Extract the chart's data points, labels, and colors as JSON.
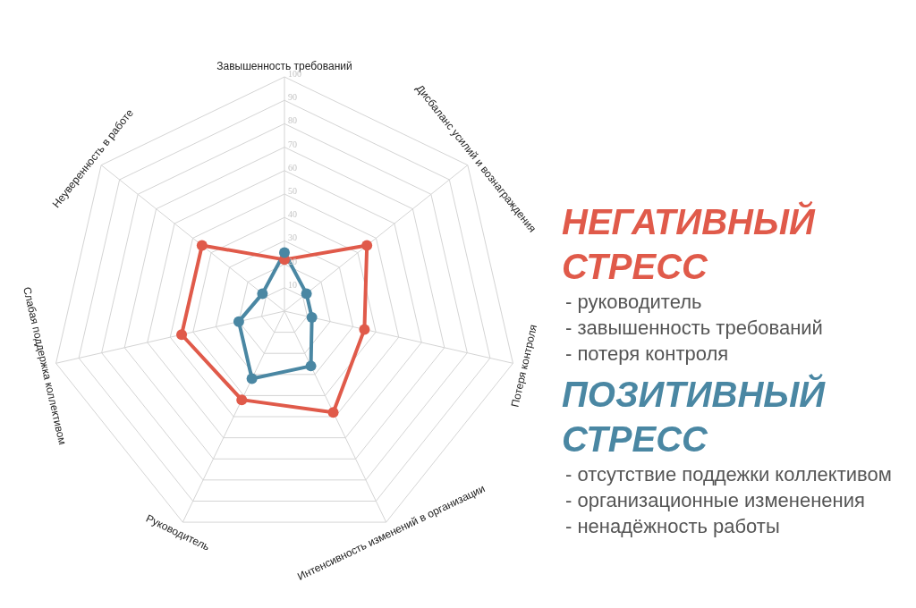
{
  "chart_data": {
    "type": "radar",
    "categories": [
      "Завышенность требований",
      "Дисбаланс усилий и вознаграждения",
      "Потеря контроля",
      "Интенсивность изменений в организации",
      "Руководитель",
      "Слабая поддержка коллективом",
      "Неуверенность в работе"
    ],
    "series": [
      {
        "name": "НЕГАТИВНЫЙ СТРЕСС",
        "color": "#e05a4a",
        "values": [
          22,
          45,
          35,
          48,
          42,
          45,
          45
        ]
      },
      {
        "name": "ПОЗИТИВНЫЙ СТРЕСС",
        "color": "#4a87a3",
        "values": [
          25,
          12,
          12,
          26,
          32,
          20,
          12
        ]
      }
    ],
    "ylim": [
      0,
      100
    ],
    "yticks": [
      10,
      20,
      30,
      40,
      50,
      60,
      70,
      80,
      90,
      100
    ],
    "grid": true,
    "marker": "circle",
    "legend": "right",
    "annotations": [
      "- руководитель\n- завышенность требований\n- потеря контроля",
      "- отсутствие поддежки коллективом\n- организационные измененения\n- ненадёжность работы"
    ]
  }
}
